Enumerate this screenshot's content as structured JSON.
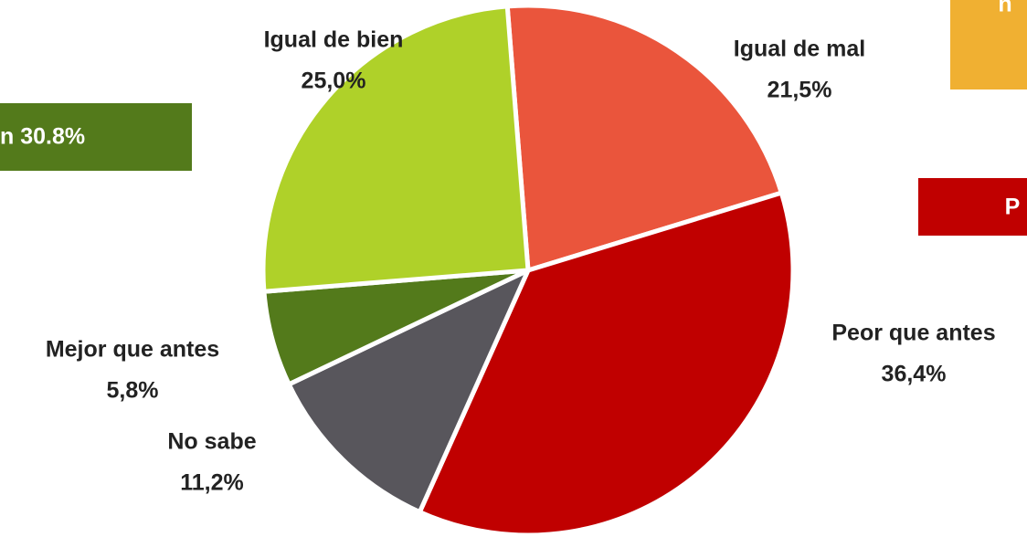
{
  "chart_data": {
    "type": "pie",
    "categories": [
      "Igual de mal",
      "Peor que antes",
      "No sabe",
      "Mejor que antes",
      "Igual de bien"
    ],
    "values": [
      21.5,
      36.4,
      11.2,
      5.8,
      25.0
    ],
    "value_labels": [
      "21,5%",
      "36,4%",
      "11,2%",
      "5,8%",
      "25,0%"
    ],
    "colors": [
      "#ea553c",
      "#c00000",
      "#58565c",
      "#537a1b",
      "#afd129"
    ],
    "annotations": [
      {
        "text": "n 30.8%",
        "color": "#537a1b"
      },
      {
        "text": "n",
        "color": "#f0b032"
      },
      {
        "text": "P",
        "color": "#c00000"
      }
    ]
  }
}
